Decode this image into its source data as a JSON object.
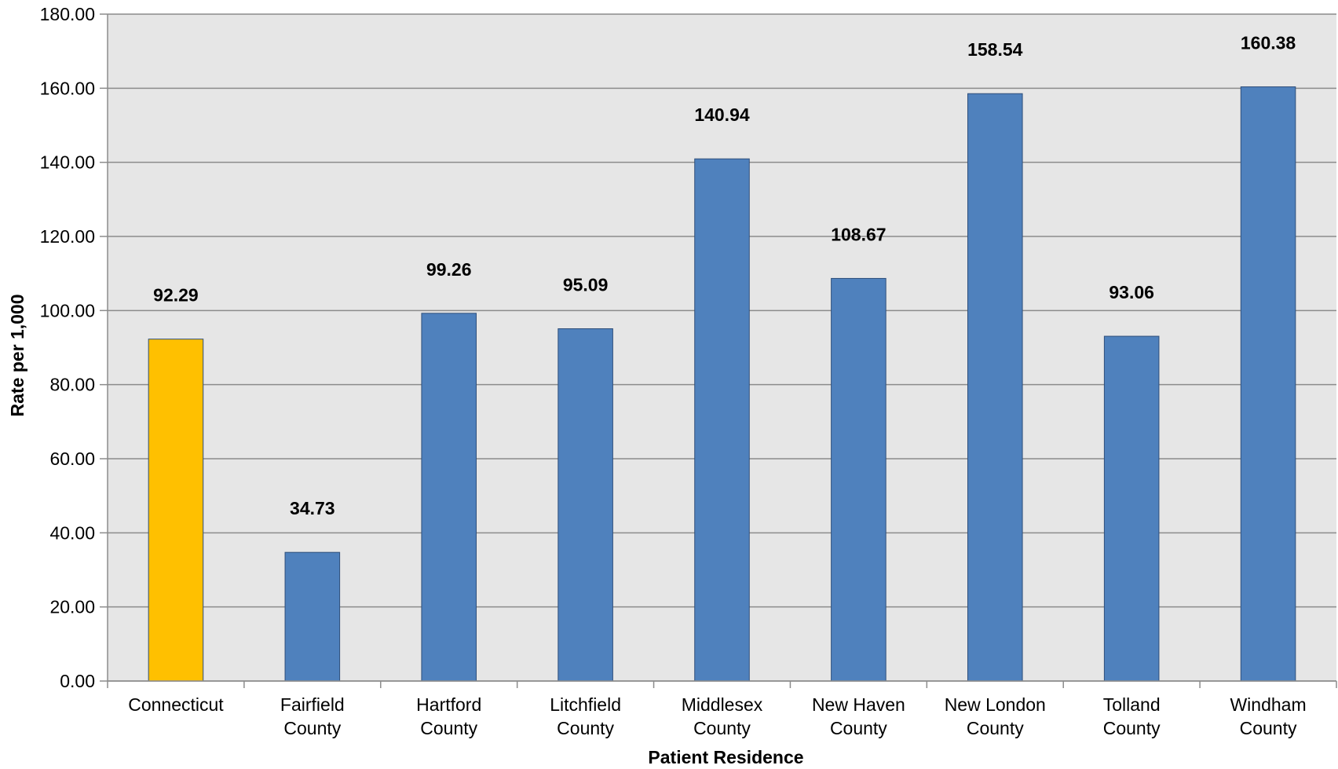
{
  "chart_data": {
    "type": "bar",
    "categories": [
      [
        "Connecticut"
      ],
      [
        "Fairfield",
        "County"
      ],
      [
        "Hartford",
        "County"
      ],
      [
        "Litchfield",
        "County"
      ],
      [
        "Middlesex",
        "County"
      ],
      [
        "New Haven",
        "County"
      ],
      [
        "New London",
        "County"
      ],
      [
        "Tolland",
        "County"
      ],
      [
        "Windham",
        "County"
      ]
    ],
    "values": [
      92.29,
      34.73,
      99.26,
      95.09,
      140.94,
      108.67,
      158.54,
      93.06,
      160.38
    ],
    "value_labels": [
      "92.29",
      "34.73",
      "99.26",
      "95.09",
      "140.94",
      "108.67",
      "158.54",
      "93.06",
      "160.38"
    ],
    "xlabel": "Patient Residence",
    "ylabel": "Rate per 1,000",
    "ylim": [
      0,
      180
    ],
    "yticks": [
      "0.00",
      "20.00",
      "40.00",
      "60.00",
      "80.00",
      "100.00",
      "120.00",
      "140.00",
      "160.00",
      "180.00"
    ],
    "grid": true,
    "legend": "none",
    "colors": {
      "highlight": "#FFC000",
      "bar": "#4F81BD",
      "bar_stroke": "#2F4F7A",
      "plot_background": "#E6E6E6",
      "gridline": "#8C8C8C"
    }
  }
}
